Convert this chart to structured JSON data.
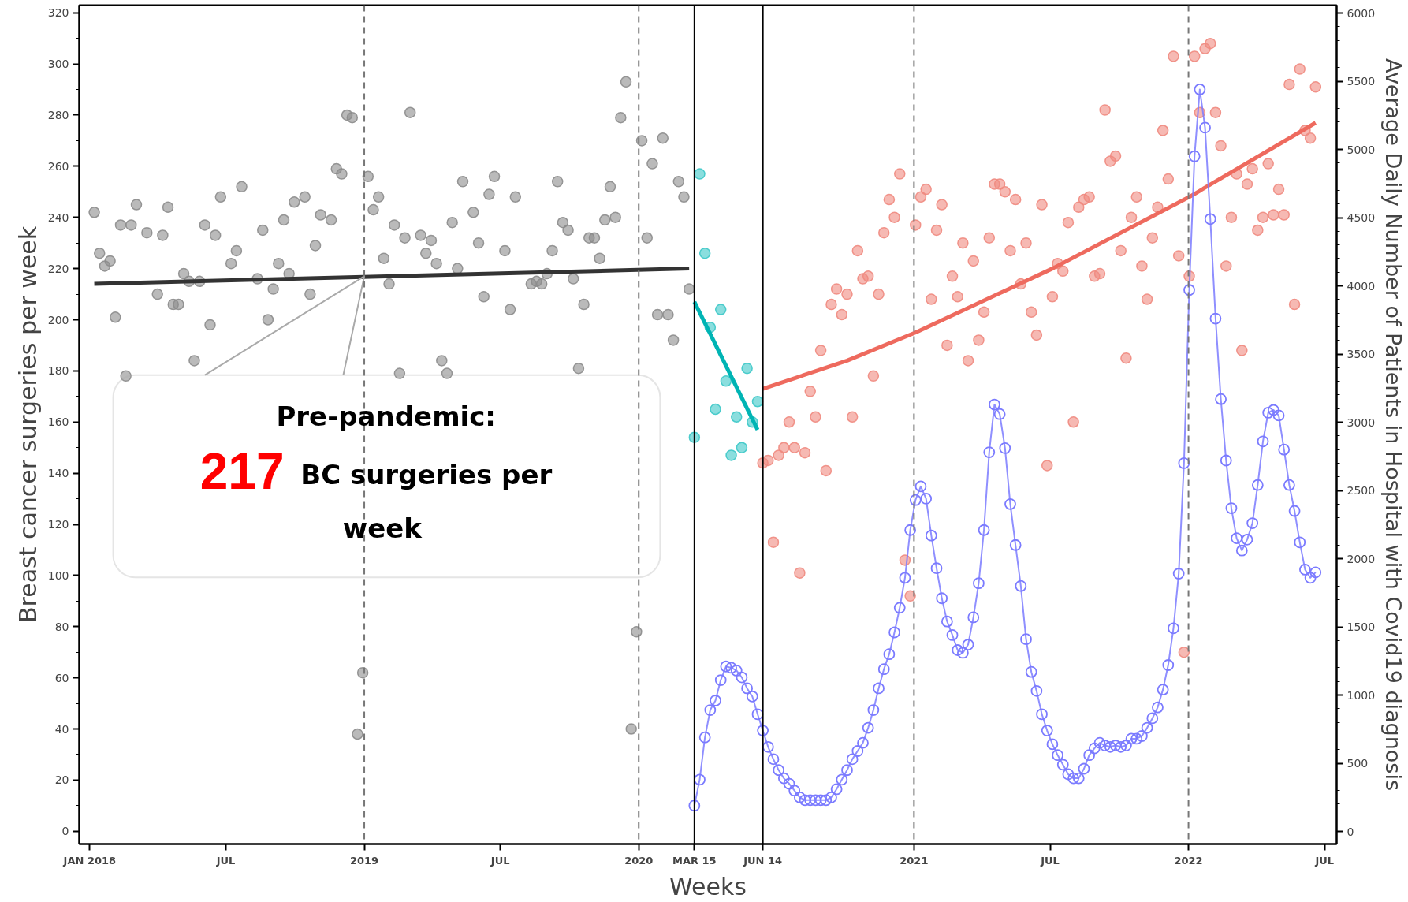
{
  "chart_data": {
    "type": "scatter",
    "xlabel": "Weeks",
    "ylabel": "Breast cancer surgeries per week",
    "y2label": "Average Daily Number of Patients in Hospital with Covid19 diagnosis",
    "xlim": [
      "2017-12-18",
      "2022-07-17"
    ],
    "xticks": [
      {
        "value": "2018-01-01",
        "label": "JAN 2018"
      },
      {
        "value": "2018-07-01",
        "label": "JUL"
      },
      {
        "value": "2019-01-01",
        "label": "2019"
      },
      {
        "value": "2019-07-01",
        "label": "JUL"
      },
      {
        "value": "2020-01-01",
        "label": "2020"
      },
      {
        "value": "2020-03-15",
        "label": "MAR 15"
      },
      {
        "value": "2020-06-14",
        "label": "JUN 14"
      },
      {
        "value": "2021-01-01",
        "label": "2021"
      },
      {
        "value": "2021-07-01",
        "label": "JUL"
      },
      {
        "value": "2022-01-01",
        "label": "2022"
      },
      {
        "value": "2022-07-01",
        "label": "JUL"
      }
    ],
    "ylim": [
      -5,
      323
    ],
    "yticks": [
      0,
      20,
      40,
      60,
      80,
      100,
      120,
      140,
      160,
      180,
      200,
      220,
      240,
      260,
      280,
      300,
      320
    ],
    "y2lim": [
      -92,
      6058
    ],
    "y2ticks": [
      0,
      500,
      1000,
      1500,
      2000,
      2500,
      3000,
      3500,
      4000,
      4500,
      5000,
      5500,
      6000
    ],
    "ref_lines": [
      {
        "axis": "x",
        "value": "2019-01-01",
        "color": "#777777",
        "line_style": "dashed"
      },
      {
        "axis": "x",
        "value": "2020-01-01",
        "color": "#777777",
        "line_style": "dashed"
      },
      {
        "axis": "x",
        "value": "2021-01-01",
        "color": "#777777",
        "line_style": "dashed"
      },
      {
        "axis": "x",
        "value": "2022-01-01",
        "color": "#777777",
        "line_style": "dashed"
      },
      {
        "axis": "x",
        "value": "2020-03-15",
        "color": "#000000",
        "line_style": "solid"
      },
      {
        "axis": "x",
        "value": "2020-06-14",
        "color": "#000000",
        "line_style": "solid"
      }
    ],
    "annotations": [
      {
        "text": "Pre-pandemic: 217 BC surgeries per week",
        "x": "2019-01-01",
        "y": 217
      }
    ],
    "series": [
      {
        "marker": "circle",
        "color": "#8c8c8c",
        "x": [
          "2018-01-07",
          "2018-01-14",
          "2018-01-21",
          "2018-01-28",
          "2018-02-04",
          "2018-02-11",
          "2018-02-18",
          "2018-02-25",
          "2018-03-04",
          "2018-03-11",
          "2018-03-18",
          "2018-03-25",
          "2018-04-01",
          "2018-04-08",
          "2018-04-15",
          "2018-04-22",
          "2018-04-29",
          "2018-05-06",
          "2018-05-13",
          "2018-05-20",
          "2018-05-27",
          "2018-06-03",
          "2018-06-10",
          "2018-06-17",
          "2018-06-24",
          "2018-07-01",
          "2018-07-08",
          "2018-07-15",
          "2018-07-22",
          "2018-07-29",
          "2018-08-05",
          "2018-08-12",
          "2018-08-19",
          "2018-08-26",
          "2018-09-02",
          "2018-09-09",
          "2018-09-16",
          "2018-09-23",
          "2018-09-30",
          "2018-10-07",
          "2018-10-14",
          "2018-10-21",
          "2018-10-28",
          "2018-11-04",
          "2018-11-11",
          "2018-11-18",
          "2018-11-25",
          "2018-12-02",
          "2018-12-09",
          "2018-12-16",
          "2018-12-23",
          "2018-12-30",
          "2019-01-06",
          "2019-01-13",
          "2019-01-20",
          "2019-01-27",
          "2019-02-03",
          "2019-02-10",
          "2019-02-17",
          "2019-02-24",
          "2019-03-03",
          "2019-03-10",
          "2019-03-17",
          "2019-03-24",
          "2019-03-31",
          "2019-04-07",
          "2019-04-14",
          "2019-04-21",
          "2019-04-28",
          "2019-05-05",
          "2019-05-12",
          "2019-05-19",
          "2019-05-26",
          "2019-06-02",
          "2019-06-09",
          "2019-06-16",
          "2019-06-23",
          "2019-06-30",
          "2019-07-07",
          "2019-07-14",
          "2019-07-21",
          "2019-07-28",
          "2019-08-04",
          "2019-08-11",
          "2019-08-18",
          "2019-08-25",
          "2019-09-01",
          "2019-09-08",
          "2019-09-15",
          "2019-09-22",
          "2019-09-29",
          "2019-10-06",
          "2019-10-13",
          "2019-10-20",
          "2019-10-27",
          "2019-11-03",
          "2019-11-10",
          "2019-11-17",
          "2019-11-24",
          "2019-12-01",
          "2019-12-08",
          "2019-12-15",
          "2019-12-22",
          "2019-12-29",
          "2020-01-05",
          "2020-01-12",
          "2020-01-19",
          "2020-01-26",
          "2020-02-02",
          "2020-02-09",
          "2020-02-16",
          "2020-02-23",
          "2020-03-01",
          "2020-03-08"
        ],
        "values": [
          242,
          226,
          221,
          223,
          201,
          237,
          178,
          237,
          245,
          null,
          234,
          null,
          210,
          233,
          244,
          206,
          206,
          218,
          215,
          184,
          215,
          237,
          198,
          233,
          248,
          null,
          222,
          227,
          252,
          null,
          null,
          216,
          235,
          200,
          212,
          222,
          239,
          218,
          246,
          null,
          248,
          210,
          229,
          241,
          null,
          239,
          259,
          257,
          280,
          279,
          38,
          62,
          256,
          243,
          248,
          224,
          214,
          237,
          179,
          232,
          281,
          null,
          233,
          226,
          231,
          222,
          184,
          179,
          238,
          220,
          254,
          null,
          242,
          230,
          209,
          249,
          256,
          null,
          227,
          204,
          248,
          null,
          null,
          214,
          215,
          214,
          218,
          227,
          254,
          238,
          235,
          216,
          181,
          206,
          232,
          232,
          224,
          239,
          252,
          240,
          279,
          293,
          40,
          78,
          270,
          232,
          261,
          202,
          271,
          202,
          192,
          254,
          248,
          212
        ]
      },
      {
        "type": "line",
        "marker": "none",
        "color": "#333333",
        "x": [
          "2018-01-07",
          "2020-03-08"
        ],
        "values": [
          214,
          220
        ]
      },
      {
        "marker": "circle",
        "color": "#3cc8c8",
        "x": [
          "2020-03-15",
          "2020-03-22",
          "2020-03-29",
          "2020-04-05",
          "2020-04-12",
          "2020-04-19",
          "2020-04-26",
          "2020-05-03",
          "2020-05-10",
          "2020-05-17",
          "2020-05-24",
          "2020-05-31",
          "2020-06-07"
        ],
        "values": [
          154,
          257,
          226,
          197,
          165,
          204,
          176,
          147,
          162,
          150,
          181,
          160,
          168
        ]
      },
      {
        "type": "line",
        "marker": "none",
        "color": "#00b4b4",
        "x": [
          "2020-03-15",
          "2020-06-07"
        ],
        "values": [
          207,
          157
        ]
      },
      {
        "marker": "circle",
        "color": "#f08a80",
        "x": [
          "2020-06-14",
          "2020-06-21",
          "2020-06-28",
          "2020-07-05",
          "2020-07-12",
          "2020-07-19",
          "2020-07-26",
          "2020-08-02",
          "2020-08-09",
          "2020-08-16",
          "2020-08-23",
          "2020-08-30",
          "2020-09-06",
          "2020-09-13",
          "2020-09-20",
          "2020-09-27",
          "2020-10-04",
          "2020-10-11",
          "2020-10-18",
          "2020-10-25",
          "2020-11-01",
          "2020-11-08",
          "2020-11-15",
          "2020-11-22",
          "2020-11-29",
          "2020-12-06",
          "2020-12-13",
          "2020-12-20",
          "2020-12-27",
          "2021-01-03",
          "2021-01-10",
          "2021-01-17",
          "2021-01-24",
          "2021-01-31",
          "2021-02-07",
          "2021-02-14",
          "2021-02-21",
          "2021-02-28",
          "2021-03-07",
          "2021-03-14",
          "2021-03-21",
          "2021-03-28",
          "2021-04-04",
          "2021-04-11",
          "2021-04-18",
          "2021-04-25",
          "2021-05-02",
          "2021-05-09",
          "2021-05-16",
          "2021-05-23",
          "2021-05-30",
          "2021-06-06",
          "2021-06-13",
          "2021-06-20",
          "2021-06-27",
          "2021-07-04",
          "2021-07-11",
          "2021-07-18",
          "2021-07-25",
          "2021-08-01",
          "2021-08-08",
          "2021-08-15",
          "2021-08-22",
          "2021-08-29",
          "2021-09-05",
          "2021-09-12",
          "2021-09-19",
          "2021-09-26",
          "2021-10-03",
          "2021-10-10",
          "2021-10-17",
          "2021-10-24",
          "2021-10-31",
          "2021-11-07",
          "2021-11-14",
          "2021-11-21",
          "2021-11-28",
          "2021-12-05",
          "2021-12-12",
          "2021-12-19",
          "2021-12-26",
          "2022-01-02",
          "2022-01-09",
          "2022-01-16",
          "2022-01-23",
          "2022-01-30",
          "2022-02-06",
          "2022-02-13",
          "2022-02-20",
          "2022-02-27",
          "2022-03-06",
          "2022-03-13",
          "2022-03-20",
          "2022-03-27",
          "2022-04-03",
          "2022-04-10",
          "2022-04-17",
          "2022-04-24",
          "2022-05-01",
          "2022-05-08",
          "2022-05-15",
          "2022-05-22",
          "2022-05-29",
          "2022-06-05",
          "2022-06-12",
          "2022-06-19"
        ],
        "values": [
          144,
          145,
          113,
          147,
          150,
          160,
          150,
          101,
          148,
          172,
          162,
          188,
          141,
          206,
          212,
          202,
          210,
          162,
          227,
          216,
          217,
          178,
          210,
          234,
          247,
          240,
          257,
          106,
          92,
          237,
          248,
          251,
          208,
          235,
          245,
          190,
          217,
          209,
          230,
          184,
          223,
          192,
          203,
          232,
          253,
          253,
          250,
          227,
          247,
          214,
          230,
          203,
          194,
          245,
          143,
          209,
          222,
          219,
          238,
          160,
          244,
          247,
          248,
          217,
          218,
          282,
          262,
          264,
          227,
          185,
          240,
          248,
          221,
          208,
          232,
          244,
          274,
          255,
          303,
          225,
          70,
          217,
          303,
          281,
          306,
          308,
          281,
          268,
          221,
          240,
          257,
          188,
          253,
          259,
          235,
          240,
          261,
          241,
          251,
          241,
          292,
          206,
          298,
          274,
          271,
          291
        ]
      },
      {
        "type": "line",
        "marker": "none",
        "color": "#ee6a5e",
        "x": [
          "2020-06-14",
          "2020-10-04",
          "2021-01-03",
          "2021-07-04",
          "2022-01-02",
          "2022-06-19"
        ],
        "values": [
          173,
          184,
          195,
          220,
          248,
          277
        ]
      },
      {
        "type": "line",
        "marker": "circle",
        "axis": "y2",
        "color": "#7b7bff",
        "x": [
          "2020-03-15",
          "2020-03-22",
          "2020-03-29",
          "2020-04-05",
          "2020-04-12",
          "2020-04-19",
          "2020-04-26",
          "2020-05-03",
          "2020-05-10",
          "2020-05-17",
          "2020-05-24",
          "2020-05-31",
          "2020-06-07",
          "2020-06-14",
          "2020-06-21",
          "2020-06-28",
          "2020-07-05",
          "2020-07-12",
          "2020-07-19",
          "2020-07-26",
          "2020-08-02",
          "2020-08-09",
          "2020-08-16",
          "2020-08-23",
          "2020-08-30",
          "2020-09-06",
          "2020-09-13",
          "2020-09-20",
          "2020-09-27",
          "2020-10-04",
          "2020-10-11",
          "2020-10-18",
          "2020-10-25",
          "2020-11-01",
          "2020-11-08",
          "2020-11-15",
          "2020-11-22",
          "2020-11-29",
          "2020-12-06",
          "2020-12-13",
          "2020-12-20",
          "2020-12-27",
          "2021-01-03",
          "2021-01-10",
          "2021-01-17",
          "2021-01-24",
          "2021-01-31",
          "2021-02-07",
          "2021-02-14",
          "2021-02-21",
          "2021-02-28",
          "2021-03-07",
          "2021-03-14",
          "2021-03-21",
          "2021-03-28",
          "2021-04-04",
          "2021-04-11",
          "2021-04-18",
          "2021-04-25",
          "2021-05-02",
          "2021-05-09",
          "2021-05-16",
          "2021-05-23",
          "2021-05-30",
          "2021-06-06",
          "2021-06-13",
          "2021-06-20",
          "2021-06-27",
          "2021-07-04",
          "2021-07-11",
          "2021-07-18",
          "2021-07-25",
          "2021-08-01",
          "2021-08-08",
          "2021-08-15",
          "2021-08-22",
          "2021-08-29",
          "2021-09-05",
          "2021-09-12",
          "2021-09-19",
          "2021-09-26",
          "2021-10-03",
          "2021-10-10",
          "2021-10-17",
          "2021-10-24",
          "2021-10-31",
          "2021-11-07",
          "2021-11-14",
          "2021-11-21",
          "2021-11-28",
          "2021-12-05",
          "2021-12-12",
          "2021-12-19",
          "2021-12-26",
          "2022-01-02",
          "2022-01-09",
          "2022-01-16",
          "2022-01-23",
          "2022-01-30",
          "2022-02-06",
          "2022-02-13",
          "2022-02-20",
          "2022-02-27",
          "2022-03-06",
          "2022-03-13",
          "2022-03-20",
          "2022-03-27",
          "2022-04-03",
          "2022-04-10",
          "2022-04-17",
          "2022-04-24",
          "2022-05-01",
          "2022-05-08",
          "2022-05-15",
          "2022-05-22",
          "2022-05-29",
          "2022-06-05",
          "2022-06-12",
          "2022-06-19"
        ],
        "values": [
          190,
          380,
          690,
          890,
          960,
          1110,
          1210,
          1200,
          1180,
          1130,
          1050,
          990,
          860,
          740,
          620,
          530,
          450,
          390,
          350,
          300,
          250,
          230,
          230,
          230,
          230,
          230,
          250,
          310,
          380,
          450,
          530,
          590,
          650,
          760,
          890,
          1050,
          1190,
          1300,
          1460,
          1640,
          1860,
          2210,
          2430,
          2530,
          2440,
          2170,
          1930,
          1710,
          1540,
          1440,
          1330,
          1310,
          1370,
          1570,
          1820,
          2210,
          2780,
          3130,
          3060,
          2810,
          2400,
          2100,
          1800,
          1410,
          1170,
          1030,
          860,
          740,
          640,
          560,
          490,
          420,
          390,
          390,
          460,
          560,
          610,
          650,
          630,
          620,
          630,
          620,
          630,
          680,
          680,
          700,
          760,
          830,
          910,
          1040,
          1220,
          1490,
          1890,
          2700,
          3970,
          4950,
          5440,
          5160,
          4490,
          3760,
          3170,
          2720,
          2370,
          2150,
          2060,
          2140,
          2260,
          2540,
          2860,
          3070,
          3090,
          3050,
          2800,
          2540,
          2350,
          2120,
          1920,
          1860,
          1900
        ]
      }
    ]
  }
}
